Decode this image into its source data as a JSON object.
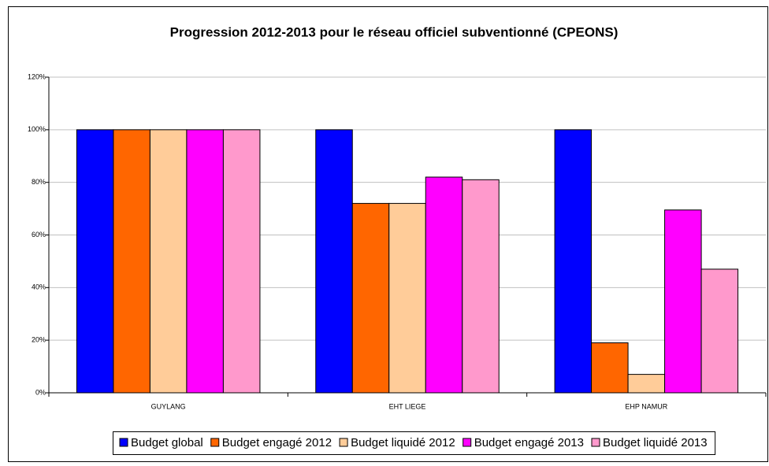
{
  "chart_data": {
    "type": "bar",
    "title": "Progression 2012-2013 pour le réseau officiel subventionné (CPEONS)",
    "categories": [
      "GUYLANG",
      "EHT LIEGE",
      "EHP NAMUR"
    ],
    "series": [
      {
        "name": "Budget global",
        "color": "#0000ff",
        "values": [
          100,
          100,
          100
        ]
      },
      {
        "name": "Budget engagé 2012",
        "color": "#ff6600",
        "values": [
          100,
          72,
          19
        ]
      },
      {
        "name": "Budget liquidé 2012",
        "color": "#ffcc99",
        "values": [
          100,
          72,
          7
        ]
      },
      {
        "name": "Budget engagé 2013",
        "color": "#ff00ff",
        "values": [
          100,
          82,
          69.5
        ]
      },
      {
        "name": "Budget liquidé 2013",
        "color": "#ff99cc",
        "values": [
          100,
          81,
          47
        ]
      }
    ],
    "ylim": [
      0,
      120
    ],
    "yticks": [
      {
        "value": 0,
        "label": "0%"
      },
      {
        "value": 20,
        "label": "20%"
      },
      {
        "value": 40,
        "label": "40%"
      },
      {
        "value": 60,
        "label": "60%"
      },
      {
        "value": 80,
        "label": "80%"
      },
      {
        "value": 100,
        "label": "100%"
      },
      {
        "value": 120,
        "label": "120%"
      }
    ],
    "grid": true,
    "legend": "bottom"
  }
}
